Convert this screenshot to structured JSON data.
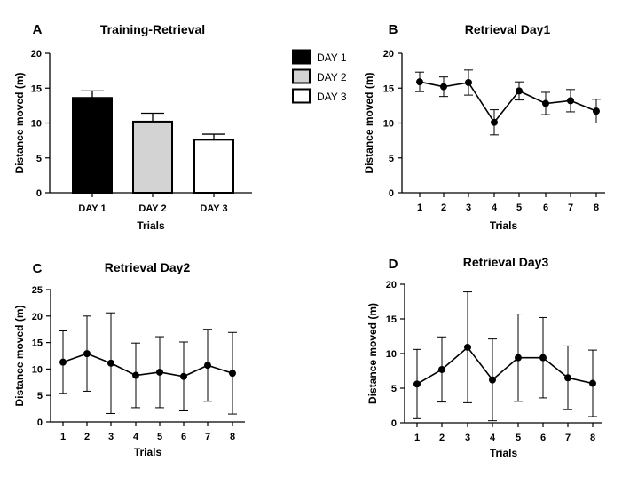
{
  "chart_data": [
    {
      "letter": "A",
      "type": "bar",
      "title": "Training-Retrieval",
      "xlabel": "Trials",
      "ylabel": "Distance moved (m)",
      "ylim": [
        0,
        20
      ],
      "yticks": [
        "0",
        "5",
        "10",
        "15",
        "20"
      ],
      "categories": [
        "DAY 1",
        "DAY 2",
        "DAY 3"
      ],
      "values": [
        13.6,
        10.2,
        7.6
      ],
      "errors": [
        1.0,
        1.2,
        0.8
      ],
      "colors": [
        "#000000",
        "#d3d3d3",
        "#ffffff"
      ],
      "legend": {
        "position": "right",
        "entries": [
          {
            "label": "DAY 1",
            "color": "#000000"
          },
          {
            "label": "DAY 2",
            "color": "#d3d3d3"
          },
          {
            "label": "DAY 3",
            "color": "#ffffff"
          }
        ]
      }
    },
    {
      "letter": "B",
      "type": "line",
      "title": "Retrieval Day1",
      "xlabel": "Trials",
      "ylabel": "Distance moved (m)",
      "ylim": [
        0,
        20
      ],
      "yticks": [
        "0",
        "5",
        "10",
        "15",
        "20"
      ],
      "x": [
        "1",
        "2",
        "3",
        "4",
        "5",
        "6",
        "7",
        "8"
      ],
      "values": [
        15.9,
        15.2,
        15.8,
        10.1,
        14.6,
        12.8,
        13.2,
        11.7
      ],
      "errors": [
        1.4,
        1.4,
        1.8,
        1.8,
        1.3,
        1.6,
        1.6,
        1.7
      ]
    },
    {
      "letter": "C",
      "type": "line",
      "title": "Retrieval Day2",
      "xlabel": "Trials",
      "ylabel": "Distance moved (m)",
      "ylim": [
        0,
        25
      ],
      "yticks": [
        "0",
        "5",
        "10",
        "15",
        "20",
        "25"
      ],
      "x": [
        "1",
        "2",
        "3",
        "4",
        "5",
        "6",
        "7",
        "8"
      ],
      "values": [
        11.3,
        12.9,
        11.1,
        8.8,
        9.4,
        8.6,
        10.7,
        9.2
      ],
      "errors": [
        5.9,
        7.1,
        9.5,
        6.1,
        6.7,
        6.5,
        6.8,
        7.7
      ]
    },
    {
      "letter": "D",
      "type": "line",
      "title": "Retrieval Day3",
      "xlabel": "Trials",
      "ylabel": "Distance moved (m)",
      "ylim": [
        0,
        20
      ],
      "yticks": [
        "0",
        "5",
        "10",
        "15",
        "20"
      ],
      "x": [
        "1",
        "2",
        "3",
        "4",
        "5",
        "6",
        "7",
        "8"
      ],
      "values": [
        5.6,
        7.7,
        10.9,
        6.2,
        9.4,
        9.4,
        6.5,
        5.7
      ],
      "errors": [
        5.0,
        4.7,
        8.0,
        5.9,
        6.3,
        5.8,
        4.6,
        4.8
      ]
    }
  ]
}
